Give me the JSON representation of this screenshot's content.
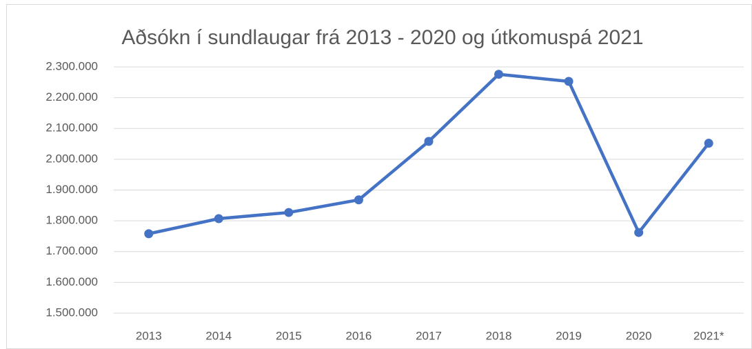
{
  "chart_data": {
    "type": "line",
    "title": "Aðsókn í sundlaugar frá 2013 - 2020 og útkomuspá 2021",
    "categories": [
      "2013",
      "2014",
      "2015",
      "2016",
      "2017",
      "2018",
      "2019",
      "2020",
      "2021*"
    ],
    "series": [
      {
        "name": null,
        "color": "#4472c4",
        "values": [
          1758000,
          1807000,
          1827000,
          1868000,
          2058000,
          2276000,
          2253000,
          1762000,
          2052000
        ]
      }
    ],
    "ylim": [
      1500000,
      2300000
    ],
    "yticks": [
      {
        "value": 1500000,
        "label": "1.500.000"
      },
      {
        "value": 1600000,
        "label": "1.600.000"
      },
      {
        "value": 1700000,
        "label": "1.700.000"
      },
      {
        "value": 1800000,
        "label": "1.800.000"
      },
      {
        "value": 1900000,
        "label": "1.900.000"
      },
      {
        "value": 2000000,
        "label": "2.000.000"
      },
      {
        "value": 2100000,
        "label": "2.100.000"
      },
      {
        "value": 2200000,
        "label": "2.200.000"
      },
      {
        "value": 2300000,
        "label": "2.300.000"
      }
    ],
    "grid": true
  }
}
